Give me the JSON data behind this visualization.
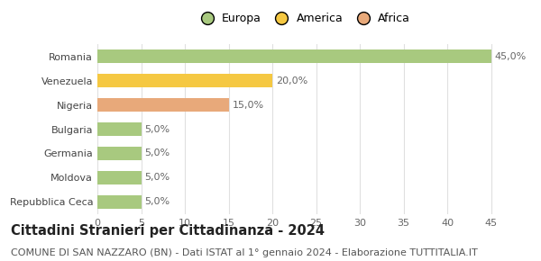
{
  "categories": [
    "Romania",
    "Venezuela",
    "Nigeria",
    "Bulgaria",
    "Germania",
    "Moldova",
    "Repubblica Ceca"
  ],
  "values": [
    45.0,
    20.0,
    15.0,
    5.0,
    5.0,
    5.0,
    5.0
  ],
  "colors": [
    "#a8c97f",
    "#f5c842",
    "#e8a97a",
    "#a8c97f",
    "#a8c97f",
    "#a8c97f",
    "#a8c97f"
  ],
  "legend_labels": [
    "Europa",
    "America",
    "Africa"
  ],
  "legend_colors": [
    "#a8c97f",
    "#f5c842",
    "#e8a97a"
  ],
  "title": "Cittadini Stranieri per Cittadinanza - 2024",
  "subtitle": "COMUNE DI SAN NAZZARO (BN) - Dati ISTAT al 1° gennaio 2024 - Elaborazione TUTTITALIA.IT",
  "xlim": [
    0,
    47
  ],
  "xticks": [
    0,
    5,
    10,
    15,
    20,
    25,
    30,
    35,
    40,
    45
  ],
  "background_color": "#ffffff",
  "grid_color": "#e0e0e0",
  "bar_height": 0.55,
  "title_fontsize": 10.5,
  "subtitle_fontsize": 8.0,
  "label_fontsize": 8.0,
  "tick_fontsize": 8.0,
  "legend_fontsize": 9.0
}
